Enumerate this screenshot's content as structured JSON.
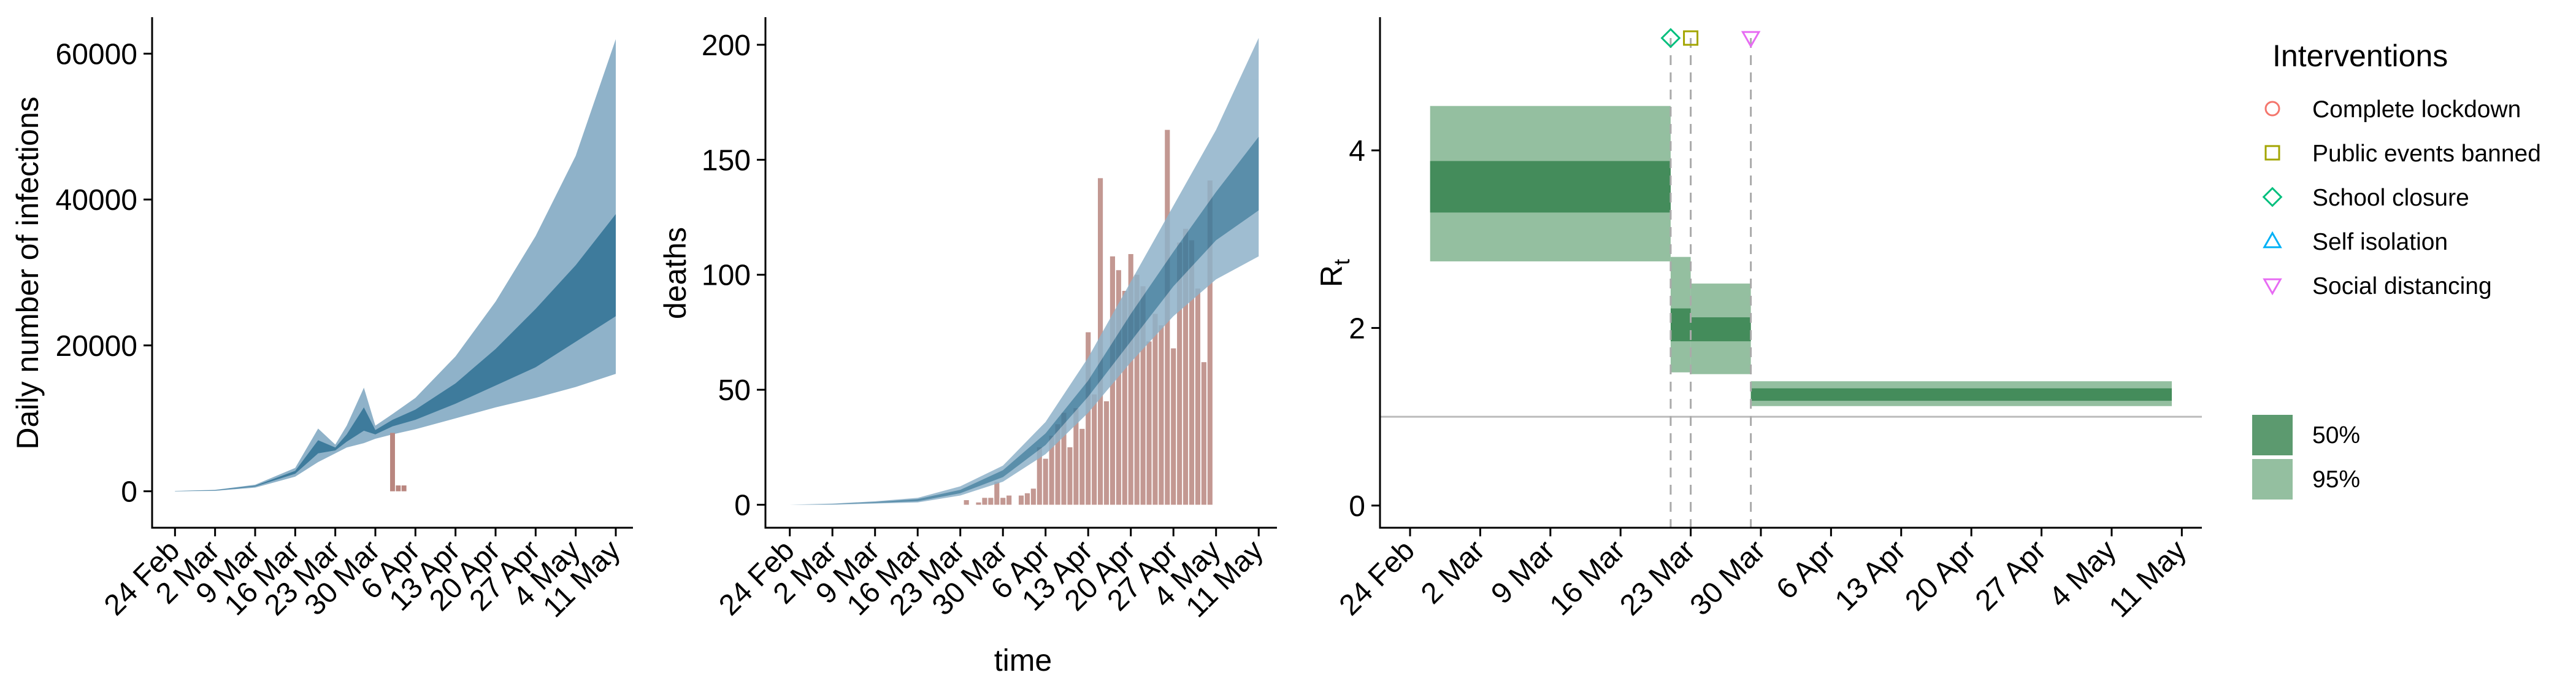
{
  "chart_data": [
    {
      "type": "area",
      "ylabel": "Daily number of infections",
      "xlabel": "",
      "ylim": [
        -5000,
        65000
      ],
      "yticks": [
        0,
        20000,
        40000,
        60000
      ],
      "ytick_labels": [
        "0",
        "20000",
        "40000",
        "60000"
      ],
      "xticks": [
        "2020-02-24",
        "2020-03-02",
        "2020-03-09",
        "2020-03-16",
        "2020-03-23",
        "2020-03-30",
        "2020-04-06",
        "2020-04-13",
        "2020-04-20",
        "2020-04-27",
        "2020-05-04",
        "2020-05-11"
      ],
      "xtick_labels": [
        "24 Feb",
        "2 Mar",
        "9 Mar",
        "16 Mar",
        "23 Mar",
        "30 Mar",
        "6 Apr",
        "13 Apr",
        "20 Apr",
        "27 Apr",
        "4 May",
        "11 May"
      ],
      "xlim": [
        "2020-02-20",
        "2020-05-14"
      ],
      "colors": {
        "ci95": "#8fb2c9",
        "ci50": "#3e7b9c",
        "observed": "#b9867f"
      },
      "ci95": {
        "x": [
          "2020-02-24",
          "2020-03-02",
          "2020-03-09",
          "2020-03-16",
          "2020-03-20",
          "2020-03-23",
          "2020-03-25",
          "2020-03-28",
          "2020-03-30",
          "2020-04-02",
          "2020-04-06",
          "2020-04-13",
          "2020-04-20",
          "2020-04-27",
          "2020-05-04",
          "2020-05-11"
        ],
        "lower": [
          0,
          60,
          500,
          2000,
          4000,
          5200,
          6000,
          6600,
          7200,
          7800,
          8500,
          10000,
          11500,
          12800,
          14300,
          16100
        ],
        "upper": [
          50,
          200,
          900,
          3200,
          8600,
          6400,
          9000,
          14200,
          9000,
          10600,
          12800,
          18500,
          26000,
          35000,
          46000,
          62000
        ]
      },
      "ci50": {
        "x": [
          "2020-02-24",
          "2020-03-02",
          "2020-03-09",
          "2020-03-16",
          "2020-03-20",
          "2020-03-23",
          "2020-03-25",
          "2020-03-28",
          "2020-03-30",
          "2020-04-02",
          "2020-04-06",
          "2020-04-13",
          "2020-04-20",
          "2020-04-27",
          "2020-05-04",
          "2020-05-11"
        ],
        "lower": [
          10,
          100,
          650,
          2400,
          5200,
          5600,
          6800,
          8300,
          7800,
          8900,
          9800,
          12000,
          14500,
          17000,
          20500,
          24000
        ],
        "upper": [
          30,
          150,
          760,
          2800,
          7000,
          6000,
          7800,
          11500,
          8400,
          9800,
          11200,
          14800,
          19500,
          25000,
          31000,
          38000
        ]
      },
      "observed": {
        "x": [
          "2020-04-02",
          "2020-04-03",
          "2020-04-04"
        ],
        "values": [
          8000,
          800,
          800
        ]
      }
    },
    {
      "type": "bar",
      "xlabel": "time",
      "ylabel": "deaths",
      "ylim": [
        -10,
        212
      ],
      "yticks": [
        0,
        50,
        100,
        150,
        200
      ],
      "ytick_labels": [
        "0",
        "50",
        "100",
        "150",
        "200"
      ],
      "xticks": [
        "2020-02-24",
        "2020-03-02",
        "2020-03-09",
        "2020-03-16",
        "2020-03-23",
        "2020-03-30",
        "2020-04-06",
        "2020-04-13",
        "2020-04-20",
        "2020-04-27",
        "2020-05-04",
        "2020-05-11"
      ],
      "xtick_labels": [
        "24 Feb",
        "2 Mar",
        "9 Mar",
        "16 Mar",
        "23 Mar",
        "30 Mar",
        "6 Apr",
        "13 Apr",
        "20 Apr",
        "27 Apr",
        "4 May",
        "11 May"
      ],
      "xlim": [
        "2020-02-20",
        "2020-05-14"
      ],
      "colors": {
        "ci95": "#8fb2c9",
        "ci50": "#3e7b9c",
        "bars": "#b9867f"
      },
      "bars": {
        "start": "2020-03-24",
        "values": [
          2,
          0,
          1,
          3,
          3,
          10,
          3,
          4,
          0,
          4,
          5,
          7,
          25,
          20,
          30,
          35,
          40,
          25,
          42,
          33,
          75,
          48,
          142,
          45,
          108,
          102,
          93,
          109,
          100,
          95,
          71,
          83,
          78,
          163,
          68,
          114,
          120,
          115,
          94,
          62,
          141
        ]
      },
      "ci95": {
        "x": [
          "2020-02-24",
          "2020-03-02",
          "2020-03-09",
          "2020-03-16",
          "2020-03-23",
          "2020-03-30",
          "2020-04-06",
          "2020-04-13",
          "2020-04-20",
          "2020-04-27",
          "2020-05-04",
          "2020-05-11"
        ],
        "lower": [
          0,
          0,
          0.5,
          1,
          4,
          10,
          22,
          40,
          62,
          82,
          98,
          108
        ],
        "upper": [
          0,
          0.5,
          1.5,
          3,
          8,
          17,
          36,
          64,
          97,
          130,
          163,
          203
        ]
      },
      "ci50": {
        "x": [
          "2020-02-24",
          "2020-03-02",
          "2020-03-09",
          "2020-03-16",
          "2020-03-23",
          "2020-03-30",
          "2020-04-06",
          "2020-04-13",
          "2020-04-20",
          "2020-04-27",
          "2020-05-04",
          "2020-05-11"
        ],
        "lower": [
          0,
          0.2,
          0.8,
          1.5,
          5,
          12,
          26,
          47,
          71,
          95,
          115,
          128
        ],
        "upper": [
          0,
          0.3,
          1.2,
          2.5,
          6.5,
          15,
          31,
          54,
          83,
          110,
          136,
          160
        ]
      }
    },
    {
      "type": "area",
      "ylabel": "R",
      "ylabel_subscript": "t",
      "xlabel": "",
      "ylim": [
        -0.25,
        5.5
      ],
      "yticks": [
        0,
        2,
        4
      ],
      "ytick_labels": [
        "0",
        "2",
        "4"
      ],
      "xticks": [
        "2020-02-24",
        "2020-03-02",
        "2020-03-09",
        "2020-03-16",
        "2020-03-23",
        "2020-03-30",
        "2020-04-06",
        "2020-04-13",
        "2020-04-20",
        "2020-04-27",
        "2020-05-04",
        "2020-05-11"
      ],
      "xtick_labels": [
        "24 Feb",
        "2 Mar",
        "9 Mar",
        "16 Mar",
        "23 Mar",
        "30 Mar",
        "6 Apr",
        "13 Apr",
        "20 Apr",
        "27 Apr",
        "4 May",
        "11 May"
      ],
      "xlim": [
        "2020-02-21",
        "2020-05-13"
      ],
      "reference_line": 1,
      "colors": {
        "ci95": "#94bfa0",
        "ci50": "#448c5b",
        "reference": "#bbbbbb",
        "intervention_line": "#aaaaaa"
      },
      "segments": [
        {
          "start": "2020-02-26",
          "end": "2020-03-21",
          "ci95": [
            2.75,
            4.5
          ],
          "ci50": [
            3.3,
            3.88
          ]
        },
        {
          "start": "2020-03-21",
          "end": "2020-03-23",
          "ci95": [
            1.5,
            2.8
          ],
          "ci50": [
            1.85,
            2.22
          ]
        },
        {
          "start": "2020-03-23",
          "end": "2020-03-29",
          "ci95": [
            1.48,
            2.5
          ],
          "ci50": [
            1.85,
            2.12
          ]
        },
        {
          "start": "2020-03-29",
          "end": "2020-05-10",
          "ci95": [
            1.12,
            1.4
          ],
          "ci50": [
            1.18,
            1.32
          ]
        }
      ],
      "interventions": [
        {
          "date": "2020-03-21",
          "name": "School closure",
          "shape": "diamond"
        },
        {
          "date": "2020-03-23",
          "name": "Public events banned",
          "shape": "square"
        },
        {
          "date": "2020-03-29",
          "name": "Social distancing",
          "shape": "triangle-down"
        }
      ]
    }
  ],
  "legend": {
    "title": "Interventions",
    "items": [
      {
        "label": "Complete lockdown",
        "shape": "circle",
        "color": "#f4766d"
      },
      {
        "label": "Public events banned",
        "shape": "square",
        "color": "#a3a500"
      },
      {
        "label": "School closure",
        "shape": "diamond",
        "color": "#00bf7d"
      },
      {
        "label": "Self isolation",
        "shape": "triangle-up",
        "color": "#00b0f6"
      },
      {
        "label": "Social distancing",
        "shape": "triangle-down",
        "color": "#e76bf3"
      }
    ],
    "fills": [
      {
        "label": "50%",
        "color": "#5c9a6f"
      },
      {
        "label": "95%",
        "color": "#94bfa0"
      }
    ]
  }
}
